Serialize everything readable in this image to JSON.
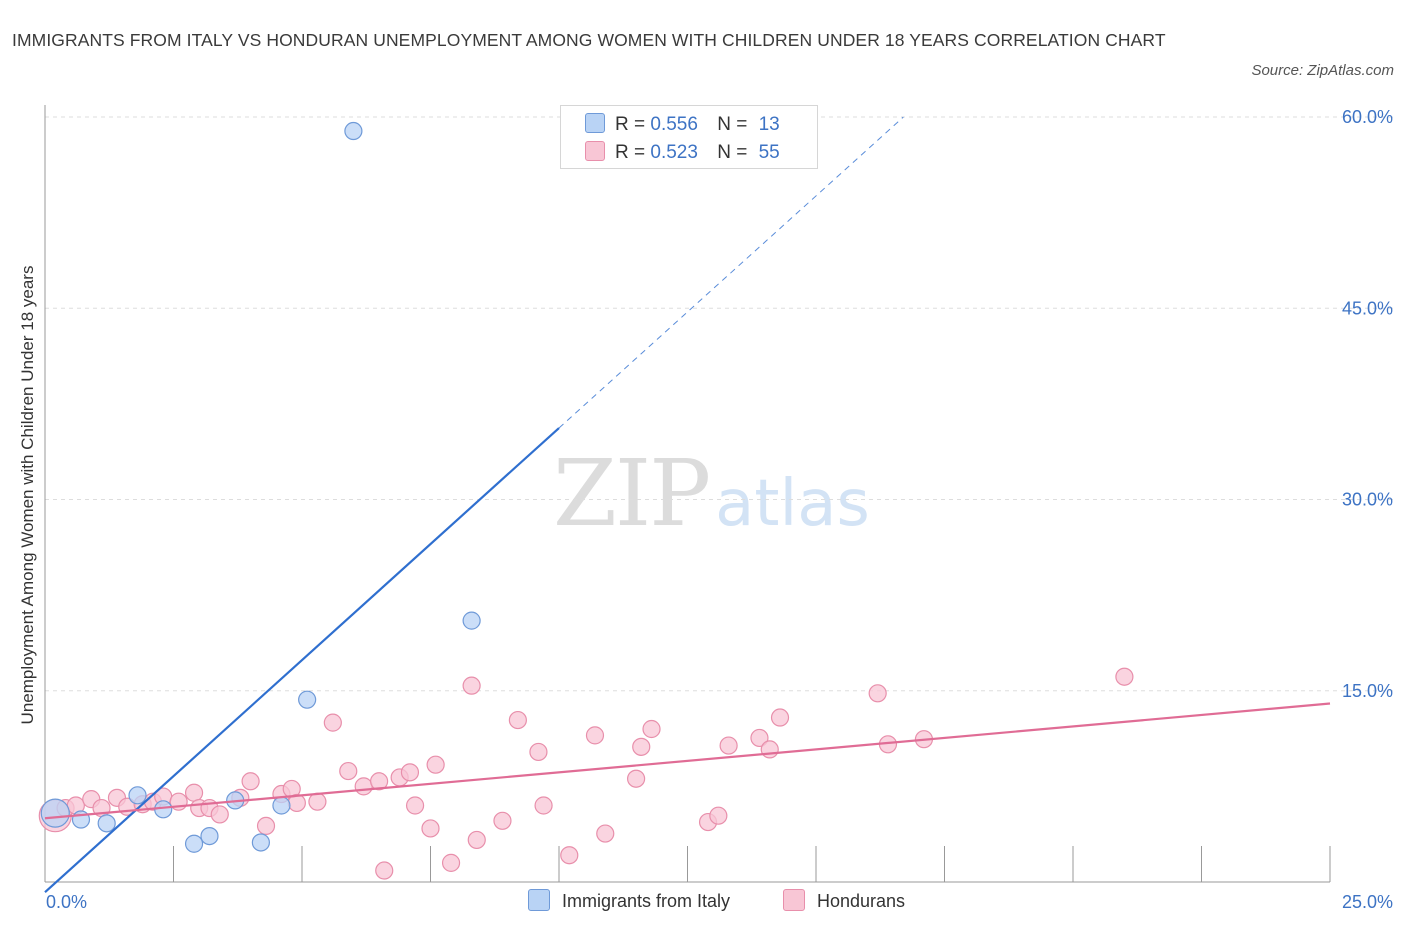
{
  "header": {
    "title": "IMMIGRANTS FROM ITALY VS HONDURAN UNEMPLOYMENT AMONG WOMEN WITH CHILDREN UNDER 18 YEARS CORRELATION CHART",
    "source": "Source: ZipAtlas.com"
  },
  "watermark": {
    "zip": "ZIP",
    "atlas": "atlas"
  },
  "legend": {
    "italy": {
      "r_label": "R =",
      "r_value": "0.556",
      "n_label": "N =",
      "n_value": "13"
    },
    "hondurans": {
      "r_label": "R =",
      "r_value": "0.523",
      "n_label": "N =",
      "n_value": "55"
    }
  },
  "colors": {
    "italy_fill": "#b9d3f5",
    "italy_stroke": "#6f9ad8",
    "italy_line": "#2f6fcf",
    "hond_fill": "#f8c6d5",
    "hond_stroke": "#e88fab",
    "hond_line": "#e06c95",
    "tick_label": "#3d73c4",
    "grid": "#dddddd"
  },
  "chart_data": {
    "type": "scatter",
    "title": "IMMIGRANTS FROM ITALY VS HONDURAN UNEMPLOYMENT AMONG WOMEN WITH CHILDREN UNDER 18 YEARS CORRELATION CHART",
    "xlabel": "",
    "ylabel": "Unemployment Among Women with Children Under 18 years",
    "xlim": [
      0,
      25
    ],
    "ylim": [
      0,
      60
    ],
    "x_tick_labels": [
      "0.0%",
      "25.0%"
    ],
    "y_ticks": [
      15,
      30,
      45,
      60
    ],
    "y_tick_labels": [
      "15.0%",
      "30.0%",
      "45.0%",
      "60.0%"
    ],
    "grid": true,
    "series": [
      {
        "name": "Immigrants from Italy",
        "R": 0.556,
        "N": 13,
        "points": [
          [
            0.2,
            5.4
          ],
          [
            0.7,
            4.9
          ],
          [
            1.2,
            4.6
          ],
          [
            1.8,
            6.8
          ],
          [
            2.3,
            5.7
          ],
          [
            2.9,
            3.0
          ],
          [
            3.2,
            3.6
          ],
          [
            3.7,
            6.4
          ],
          [
            4.2,
            3.1
          ],
          [
            4.6,
            6.0
          ],
          [
            5.1,
            14.3
          ],
          [
            6.0,
            58.9
          ],
          [
            8.3,
            20.5
          ]
        ],
        "trend": {
          "x0": 0,
          "y0": -0.8,
          "x1": 16.7,
          "y1": 60,
          "solid_to_x": 10.0
        }
      },
      {
        "name": "Hondurans",
        "R": 0.523,
        "N": 55,
        "points": [
          [
            0.2,
            5.2
          ],
          [
            0.4,
            5.8
          ],
          [
            0.6,
            6.0
          ],
          [
            0.9,
            6.5
          ],
          [
            1.1,
            5.8
          ],
          [
            1.4,
            6.6
          ],
          [
            1.6,
            5.9
          ],
          [
            1.9,
            6.1
          ],
          [
            2.1,
            6.3
          ],
          [
            2.3,
            6.7
          ],
          [
            2.6,
            6.3
          ],
          [
            2.9,
            7.0
          ],
          [
            3.0,
            5.8
          ],
          [
            3.2,
            5.8
          ],
          [
            3.4,
            5.3
          ],
          [
            3.8,
            6.6
          ],
          [
            4.0,
            7.9
          ],
          [
            4.3,
            4.4
          ],
          [
            4.6,
            6.9
          ],
          [
            4.8,
            7.3
          ],
          [
            4.9,
            6.2
          ],
          [
            5.3,
            6.3
          ],
          [
            5.6,
            12.5
          ],
          [
            5.9,
            8.7
          ],
          [
            6.2,
            7.5
          ],
          [
            6.5,
            7.9
          ],
          [
            6.6,
            0.9
          ],
          [
            6.9,
            8.2
          ],
          [
            7.1,
            8.6
          ],
          [
            7.2,
            6.0
          ],
          [
            7.5,
            4.2
          ],
          [
            7.6,
            9.2
          ],
          [
            7.9,
            1.5
          ],
          [
            8.3,
            15.4
          ],
          [
            8.4,
            3.3
          ],
          [
            8.9,
            4.8
          ],
          [
            9.2,
            12.7
          ],
          [
            9.6,
            10.2
          ],
          [
            9.7,
            6.0
          ],
          [
            10.2,
            2.1
          ],
          [
            10.7,
            11.5
          ],
          [
            10.9,
            3.8
          ],
          [
            11.5,
            8.1
          ],
          [
            11.6,
            10.6
          ],
          [
            11.8,
            12.0
          ],
          [
            12.9,
            4.7
          ],
          [
            13.1,
            5.2
          ],
          [
            13.3,
            10.7
          ],
          [
            13.9,
            11.3
          ],
          [
            14.1,
            10.4
          ],
          [
            14.3,
            12.9
          ],
          [
            16.2,
            14.8
          ],
          [
            16.4,
            10.8
          ],
          [
            17.1,
            11.2
          ],
          [
            21.0,
            16.1
          ]
        ],
        "trend": {
          "x0": 0,
          "y0": 5.0,
          "x1": 25,
          "y1": 14.0
        }
      }
    ]
  }
}
